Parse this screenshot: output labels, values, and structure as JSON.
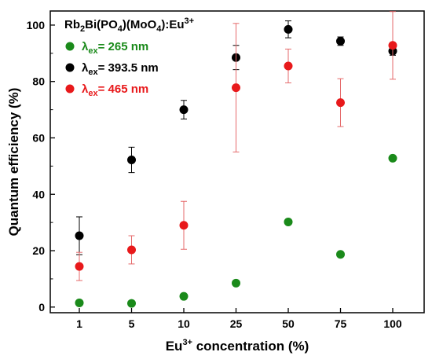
{
  "chart_data": {
    "type": "scatter",
    "title": "Rb₂Bi(PO₄)(MoO₄):Eu³⁺",
    "xlabel": "Eu³⁺ concentration (%)",
    "ylabel": "Quantum efficiency (%)",
    "categories": [
      "1",
      "5",
      "10",
      "25",
      "50",
      "75",
      "100"
    ],
    "ylim": [
      -2,
      105
    ],
    "yticks": [
      0,
      20,
      40,
      60,
      80,
      100
    ],
    "grid": false,
    "legend_position": "top-left",
    "series": [
      {
        "name": "λ_ex = 265 nm",
        "color": "#1a8a1a",
        "values": [
          1.5,
          1.3,
          3.8,
          8.5,
          30.2,
          18.7,
          52.8
        ],
        "errors": [
          null,
          null,
          null,
          null,
          null,
          null,
          null
        ]
      },
      {
        "name": "λ_ex = 393.5 nm",
        "color": "#000000",
        "values": [
          25.3,
          52.2,
          70.0,
          88.5,
          98.5,
          94.3,
          90.8
        ],
        "errors": [
          6.7,
          4.5,
          3.3,
          4.3,
          3.0,
          1.5,
          1.5
        ]
      },
      {
        "name": "λ_ex = 465 nm",
        "color": "#e8191b",
        "values": [
          14.4,
          20.3,
          29.0,
          77.8,
          85.5,
          72.5,
          92.8
        ],
        "errors": [
          5.0,
          5.0,
          8.5,
          22.8,
          6.0,
          8.5,
          12.0
        ]
      }
    ]
  },
  "ui": {
    "title_parts": [
      "Rb",
      "2",
      "Bi(PO",
      "4",
      ")(MoO",
      "4",
      "):Eu",
      "3+"
    ],
    "legend": [
      {
        "lambda": "λ",
        "sub": "ex",
        "rest": "= 265 nm"
      },
      {
        "lambda": "λ",
        "sub": "ex",
        "rest": "= 393.5 nm"
      },
      {
        "lambda": "λ",
        "sub": "ex",
        "rest": "= 465 nm"
      }
    ],
    "xlabel_parts": [
      "Eu",
      "3+",
      " concentration (%)"
    ],
    "ylabel": "Quantum efficiency (%)"
  }
}
